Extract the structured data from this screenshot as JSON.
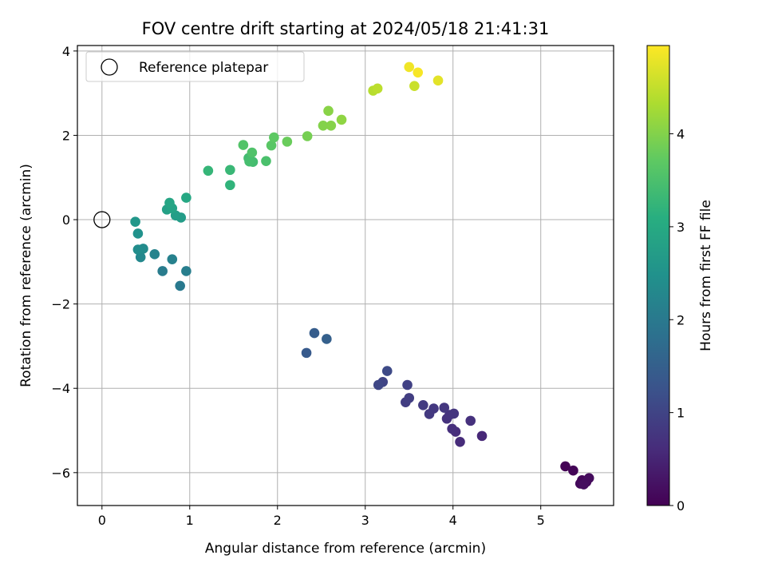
{
  "chart_data": {
    "type": "scatter",
    "title": "FOV centre drift starting at 2024/05/18 21:41:31",
    "xlabel": "Angular distance from reference (arcmin)",
    "ylabel": "Rotation from reference (arcmin)",
    "xlim": [
      -0.28,
      5.83
    ],
    "ylim": [
      -6.78,
      4.13
    ],
    "xticks": [
      0,
      1,
      2,
      3,
      4,
      5
    ],
    "yticks": [
      -6,
      -4,
      -2,
      0,
      2,
      4
    ],
    "xtick_labels": [
      "0",
      "1",
      "2",
      "3",
      "4",
      "5"
    ],
    "ytick_labels": [
      "−6",
      "−4",
      "−2",
      "0",
      "2",
      "4"
    ],
    "grid": true,
    "legend": {
      "position": "top-left",
      "entries": [
        "Reference platepar"
      ]
    },
    "reference_point": {
      "x": 0,
      "y": 0
    },
    "colorbar": {
      "label": "Hours from first FF file",
      "range": [
        0,
        4.95
      ],
      "ticks": [
        0,
        1,
        2,
        3,
        4
      ],
      "tick_labels": [
        "0",
        "1",
        "2",
        "3",
        "4"
      ],
      "colormap": "viridis"
    },
    "points": [
      {
        "x": 5.28,
        "y": -5.85,
        "c": 0.02
      },
      {
        "x": 5.37,
        "y": -5.95,
        "c": 0.05
      },
      {
        "x": 5.47,
        "y": -6.18,
        "c": 0.08
      },
      {
        "x": 5.45,
        "y": -6.26,
        "c": 0.1
      },
      {
        "x": 5.52,
        "y": -6.22,
        "c": 0.12
      },
      {
        "x": 5.55,
        "y": -6.13,
        "c": 0.15
      },
      {
        "x": 5.49,
        "y": -6.28,
        "c": 0.18
      },
      {
        "x": 4.33,
        "y": -5.13,
        "c": 0.55
      },
      {
        "x": 4.08,
        "y": -5.27,
        "c": 0.6
      },
      {
        "x": 4.03,
        "y": -5.03,
        "c": 0.62
      },
      {
        "x": 3.99,
        "y": -4.96,
        "c": 0.65
      },
      {
        "x": 4.2,
        "y": -4.77,
        "c": 0.68
      },
      {
        "x": 3.93,
        "y": -4.72,
        "c": 0.7
      },
      {
        "x": 3.96,
        "y": -4.63,
        "c": 0.72
      },
      {
        "x": 4.01,
        "y": -4.6,
        "c": 0.75
      },
      {
        "x": 3.9,
        "y": -4.46,
        "c": 0.78
      },
      {
        "x": 3.78,
        "y": -4.48,
        "c": 0.8
      },
      {
        "x": 3.73,
        "y": -4.61,
        "c": 0.82
      },
      {
        "x": 3.66,
        "y": -4.4,
        "c": 0.85
      },
      {
        "x": 3.46,
        "y": -4.33,
        "c": 0.88
      },
      {
        "x": 3.5,
        "y": -4.23,
        "c": 0.9
      },
      {
        "x": 3.48,
        "y": -3.92,
        "c": 0.95
      },
      {
        "x": 3.2,
        "y": -3.85,
        "c": 1.0
      },
      {
        "x": 3.15,
        "y": -3.92,
        "c": 1.05
      },
      {
        "x": 3.25,
        "y": -3.59,
        "c": 1.1
      },
      {
        "x": 2.33,
        "y": -3.16,
        "c": 1.4
      },
      {
        "x": 2.42,
        "y": -2.69,
        "c": 1.45
      },
      {
        "x": 2.56,
        "y": -2.83,
        "c": 1.5
      },
      {
        "x": 0.89,
        "y": -1.57,
        "c": 2.0
      },
      {
        "x": 0.69,
        "y": -1.22,
        "c": 2.05
      },
      {
        "x": 0.96,
        "y": -1.22,
        "c": 2.1
      },
      {
        "x": 0.8,
        "y": -0.94,
        "c": 2.15
      },
      {
        "x": 0.6,
        "y": -0.82,
        "c": 2.2
      },
      {
        "x": 0.44,
        "y": -0.89,
        "c": 2.3
      },
      {
        "x": 0.47,
        "y": -0.69,
        "c": 2.35
      },
      {
        "x": 0.41,
        "y": -0.71,
        "c": 2.4
      },
      {
        "x": 0.41,
        "y": -0.33,
        "c": 2.5
      },
      {
        "x": 0.38,
        "y": -0.05,
        "c": 2.6
      },
      {
        "x": 0.9,
        "y": 0.05,
        "c": 2.7
      },
      {
        "x": 0.84,
        "y": 0.1,
        "c": 2.75
      },
      {
        "x": 0.74,
        "y": 0.24,
        "c": 2.8
      },
      {
        "x": 0.8,
        "y": 0.27,
        "c": 2.85
      },
      {
        "x": 0.77,
        "y": 0.4,
        "c": 2.9
      },
      {
        "x": 0.96,
        "y": 0.52,
        "c": 2.95
      },
      {
        "x": 1.46,
        "y": 0.82,
        "c": 3.2
      },
      {
        "x": 1.21,
        "y": 1.16,
        "c": 3.25
      },
      {
        "x": 1.46,
        "y": 1.18,
        "c": 3.3
      },
      {
        "x": 1.67,
        "y": 1.46,
        "c": 3.4
      },
      {
        "x": 1.72,
        "y": 1.37,
        "c": 3.42
      },
      {
        "x": 1.68,
        "y": 1.38,
        "c": 3.45
      },
      {
        "x": 1.87,
        "y": 1.39,
        "c": 3.5
      },
      {
        "x": 1.71,
        "y": 1.59,
        "c": 3.55
      },
      {
        "x": 1.61,
        "y": 1.77,
        "c": 3.58
      },
      {
        "x": 1.93,
        "y": 1.76,
        "c": 3.65
      },
      {
        "x": 1.96,
        "y": 1.95,
        "c": 3.7
      },
      {
        "x": 2.11,
        "y": 1.85,
        "c": 3.8
      },
      {
        "x": 2.34,
        "y": 1.98,
        "c": 3.9
      },
      {
        "x": 2.52,
        "y": 2.23,
        "c": 4.0
      },
      {
        "x": 2.61,
        "y": 2.23,
        "c": 4.02
      },
      {
        "x": 2.58,
        "y": 2.58,
        "c": 4.05
      },
      {
        "x": 2.73,
        "y": 2.37,
        "c": 4.1
      },
      {
        "x": 3.09,
        "y": 3.06,
        "c": 4.4
      },
      {
        "x": 3.14,
        "y": 3.11,
        "c": 4.45
      },
      {
        "x": 3.56,
        "y": 3.17,
        "c": 4.55
      },
      {
        "x": 3.83,
        "y": 3.3,
        "c": 4.75
      },
      {
        "x": 3.5,
        "y": 3.62,
        "c": 4.85
      },
      {
        "x": 3.6,
        "y": 3.49,
        "c": 4.9
      }
    ]
  }
}
